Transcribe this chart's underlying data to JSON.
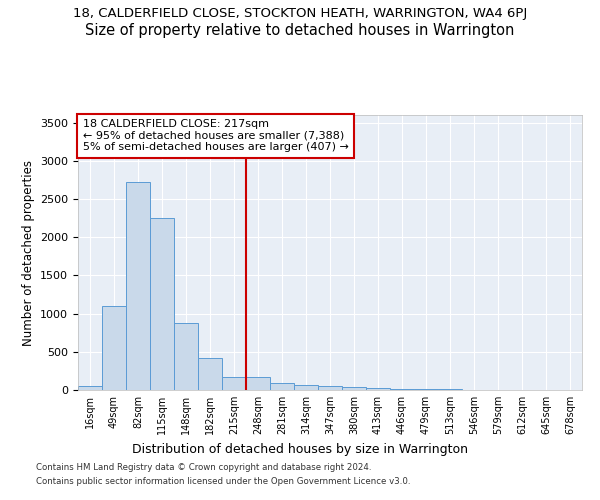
{
  "title": "18, CALDERFIELD CLOSE, STOCKTON HEATH, WARRINGTON, WA4 6PJ",
  "subtitle": "Size of property relative to detached houses in Warrington",
  "xlabel": "Distribution of detached houses by size in Warrington",
  "ylabel": "Number of detached properties",
  "bar_labels": [
    "16sqm",
    "49sqm",
    "82sqm",
    "115sqm",
    "148sqm",
    "182sqm",
    "215sqm",
    "248sqm",
    "281sqm",
    "314sqm",
    "347sqm",
    "380sqm",
    "413sqm",
    "446sqm",
    "479sqm",
    "513sqm",
    "546sqm",
    "579sqm",
    "612sqm",
    "645sqm",
    "678sqm"
  ],
  "bar_values": [
    50,
    1100,
    2725,
    2250,
    875,
    425,
    175,
    175,
    95,
    65,
    50,
    35,
    25,
    15,
    10,
    7,
    5,
    5,
    5,
    5,
    5
  ],
  "bar_color": "#c9d9ea",
  "bar_edge_color": "#5b9bd5",
  "vline_index": 6,
  "vline_color": "#cc0000",
  "annotation_text": "18 CALDERFIELD CLOSE: 217sqm\n← 95% of detached houses are smaller (7,388)\n5% of semi-detached houses are larger (407) →",
  "annotation_box_color": "#cc0000",
  "ylim": [
    0,
    3600
  ],
  "yticks": [
    0,
    500,
    1000,
    1500,
    2000,
    2500,
    3000,
    3500
  ],
  "footer_line1": "Contains HM Land Registry data © Crown copyright and database right 2024.",
  "footer_line2": "Contains public sector information licensed under the Open Government Licence v3.0.",
  "bg_color": "#e8eef6",
  "grid_color": "#ffffff",
  "title_fontsize": 9.5,
  "subtitle_fontsize": 10.5
}
